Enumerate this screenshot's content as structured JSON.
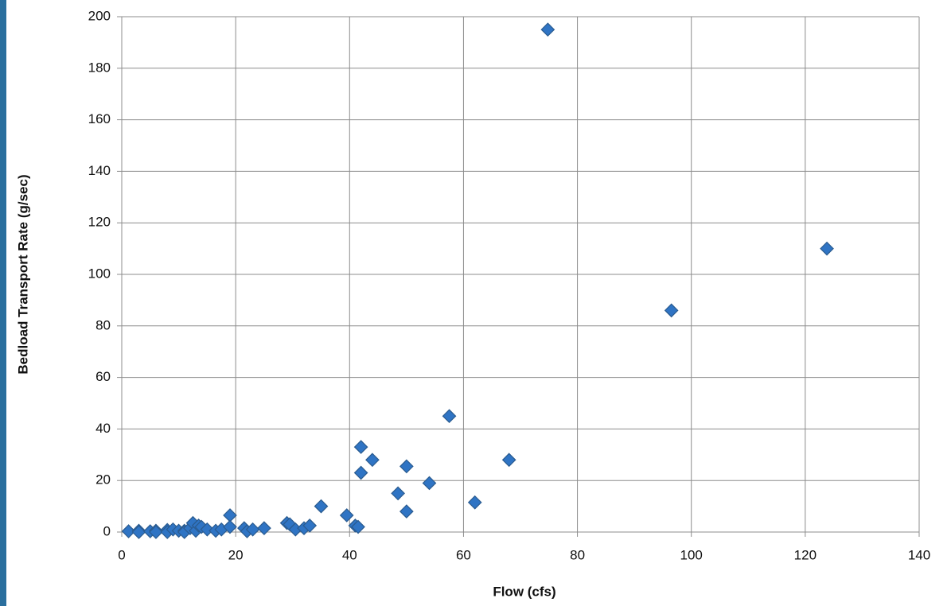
{
  "chart_data": {
    "type": "scatter",
    "xlabel": "Flow (cfs)",
    "ylabel": "Bedload Transport Rate (g/sec)",
    "x": [
      1.2,
      3,
      3,
      5,
      6,
      6,
      8,
      8,
      9,
      10,
      11,
      11,
      12,
      12.5,
      13,
      13.5,
      14,
      15,
      16.5,
      17.5,
      19,
      19,
      21.5,
      22,
      23,
      25,
      29,
      29.5,
      30.5,
      32,
      33,
      35,
      39.5,
      41,
      41.5,
      42,
      42,
      44,
      48.5,
      50,
      50,
      54,
      57.5,
      62,
      68,
      74.8,
      96.5,
      123.8
    ],
    "values": [
      0.3,
      0.5,
      0,
      0.3,
      0.5,
      0,
      0.8,
      0,
      1,
      0.5,
      0.5,
      0,
      1.5,
      3.5,
      0.5,
      2.5,
      2,
      1,
      0.5,
      1,
      6.5,
      2,
      1.5,
      0.3,
      1,
      1.5,
      3.5,
      3,
      1,
      1.5,
      2.5,
      10,
      6.5,
      2.5,
      2,
      33,
      23,
      28,
      15,
      8,
      25.5,
      19,
      45,
      11.5,
      28,
      195,
      86,
      110
    ],
    "color": "#2f74c4",
    "xlim": [
      0,
      140
    ],
    "xticks": [
      0,
      20,
      40,
      60,
      80,
      100,
      120,
      140
    ],
    "ylim": [
      0,
      200
    ],
    "yticks": [
      0,
      20,
      40,
      60,
      80,
      100,
      120,
      140,
      160,
      180,
      200
    ],
    "grid": true
  }
}
